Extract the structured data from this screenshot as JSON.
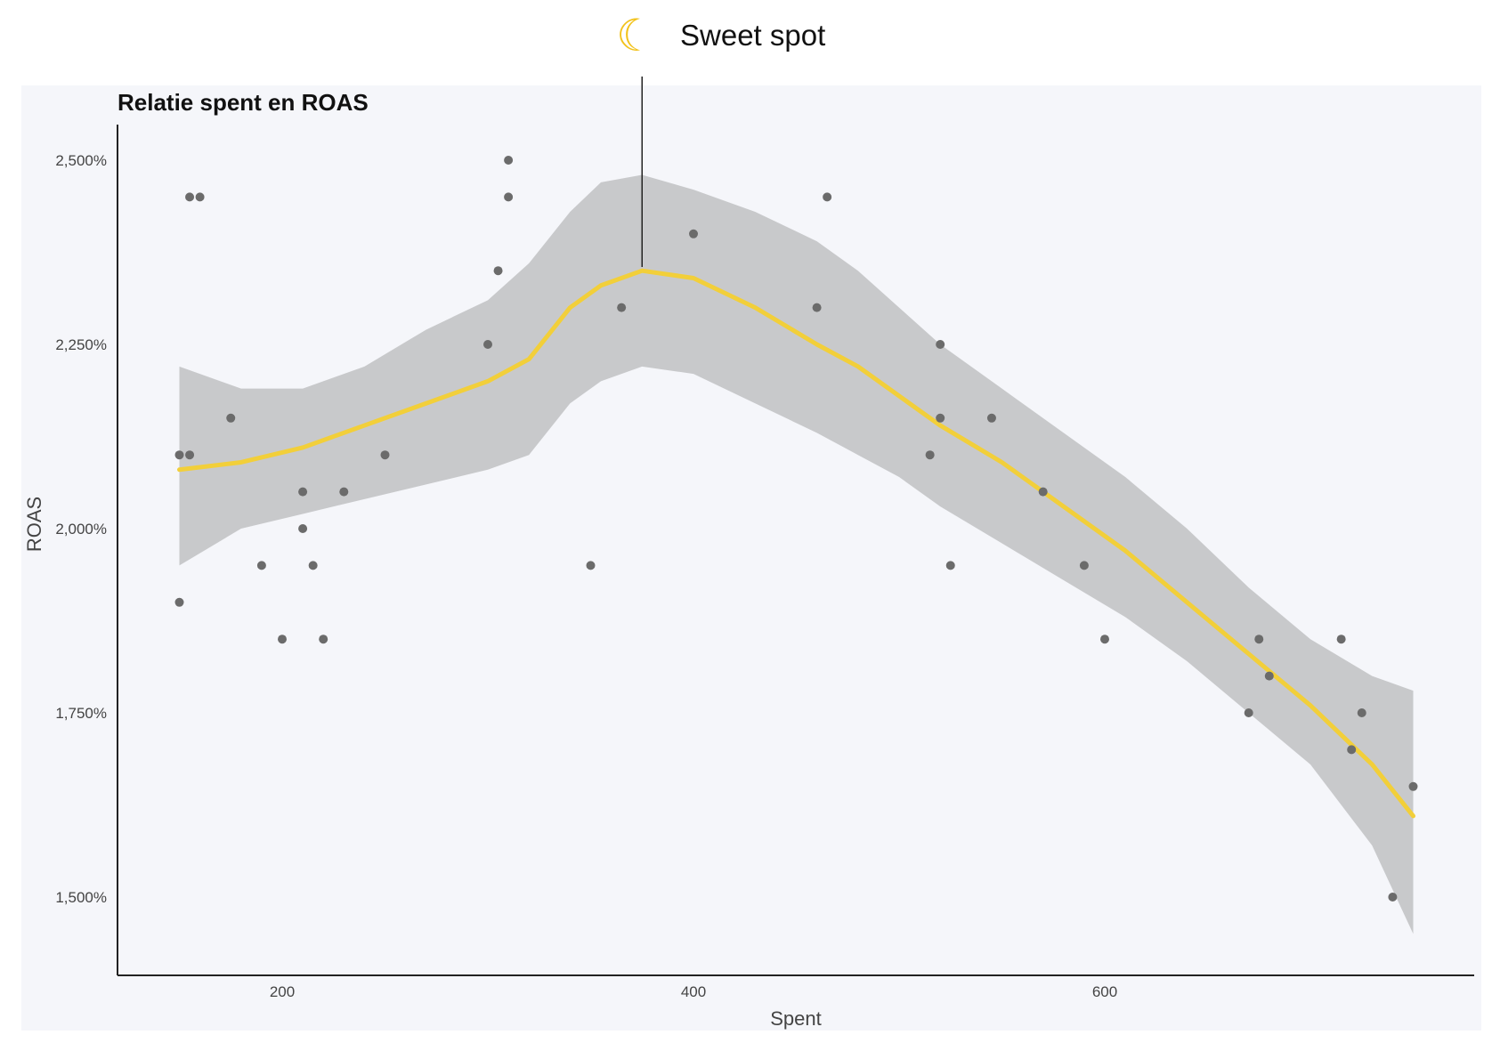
{
  "annotation": {
    "icon": "crescent-moon-icon",
    "label": "Sweet spot",
    "x": 375
  },
  "chart_data": {
    "type": "scatter",
    "title": "Relatie spent en ROAS",
    "xlabel": "Spent",
    "ylabel": "ROAS",
    "xlim": [
      120,
      760
    ],
    "ylim": [
      1.43,
      2.55
    ],
    "xticks": [
      200,
      400,
      600
    ],
    "xtick_labels": [
      "200",
      "400",
      "600"
    ],
    "yticks": [
      1.5,
      1.75,
      2.0,
      2.25,
      2.5
    ],
    "ytick_labels": [
      "1,500%",
      "1,750%",
      "2,000%",
      "2,250%",
      "2,500%"
    ],
    "grid": false,
    "colors": {
      "points": "#6b6b6b",
      "trend": "#f2cf3a",
      "band": "#c8c9cb",
      "axis": "#222222",
      "background": "#f5f6fa"
    },
    "points": [
      {
        "x": 150,
        "y": 1.9
      },
      {
        "x": 150,
        "y": 2.1
      },
      {
        "x": 155,
        "y": 2.1
      },
      {
        "x": 155,
        "y": 2.45
      },
      {
        "x": 160,
        "y": 2.45
      },
      {
        "x": 175,
        "y": 2.15
      },
      {
        "x": 190,
        "y": 1.95
      },
      {
        "x": 200,
        "y": 1.85
      },
      {
        "x": 210,
        "y": 2.05
      },
      {
        "x": 210,
        "y": 2.0
      },
      {
        "x": 215,
        "y": 1.95
      },
      {
        "x": 220,
        "y": 1.85
      },
      {
        "x": 230,
        "y": 2.05
      },
      {
        "x": 250,
        "y": 2.1
      },
      {
        "x": 300,
        "y": 2.25
      },
      {
        "x": 305,
        "y": 2.35
      },
      {
        "x": 310,
        "y": 2.5
      },
      {
        "x": 310,
        "y": 2.45
      },
      {
        "x": 350,
        "y": 1.95
      },
      {
        "x": 365,
        "y": 2.3
      },
      {
        "x": 400,
        "y": 2.4
      },
      {
        "x": 460,
        "y": 2.3
      },
      {
        "x": 465,
        "y": 2.45
      },
      {
        "x": 515,
        "y": 2.1
      },
      {
        "x": 520,
        "y": 2.25
      },
      {
        "x": 520,
        "y": 2.15
      },
      {
        "x": 525,
        "y": 1.95
      },
      {
        "x": 545,
        "y": 2.15
      },
      {
        "x": 570,
        "y": 2.05
      },
      {
        "x": 590,
        "y": 1.95
      },
      {
        "x": 600,
        "y": 1.85
      },
      {
        "x": 670,
        "y": 1.75
      },
      {
        "x": 675,
        "y": 1.85
      },
      {
        "x": 680,
        "y": 1.8
      },
      {
        "x": 715,
        "y": 1.85
      },
      {
        "x": 720,
        "y": 1.7
      },
      {
        "x": 725,
        "y": 1.75
      },
      {
        "x": 740,
        "y": 1.5
      },
      {
        "x": 750,
        "y": 1.65
      }
    ],
    "trend": {
      "x": [
        150,
        180,
        210,
        240,
        270,
        300,
        320,
        340,
        355,
        375,
        400,
        430,
        460,
        480,
        500,
        520,
        550,
        580,
        610,
        640,
        670,
        700,
        730,
        750
      ],
      "y": [
        2.08,
        2.09,
        2.11,
        2.14,
        2.17,
        2.2,
        2.23,
        2.3,
        2.33,
        2.35,
        2.34,
        2.3,
        2.25,
        2.22,
        2.18,
        2.14,
        2.09,
        2.03,
        1.97,
        1.9,
        1.83,
        1.76,
        1.68,
        1.61
      ],
      "lower": [
        1.95,
        2.0,
        2.02,
        2.04,
        2.06,
        2.08,
        2.1,
        2.17,
        2.2,
        2.22,
        2.21,
        2.17,
        2.13,
        2.1,
        2.07,
        2.03,
        1.98,
        1.93,
        1.88,
        1.82,
        1.75,
        1.68,
        1.57,
        1.45
      ],
      "upper": [
        2.22,
        2.19,
        2.19,
        2.22,
        2.27,
        2.31,
        2.36,
        2.43,
        2.47,
        2.48,
        2.46,
        2.43,
        2.39,
        2.35,
        2.3,
        2.25,
        2.19,
        2.13,
        2.07,
        2.0,
        1.92,
        1.85,
        1.8,
        1.78
      ]
    }
  }
}
